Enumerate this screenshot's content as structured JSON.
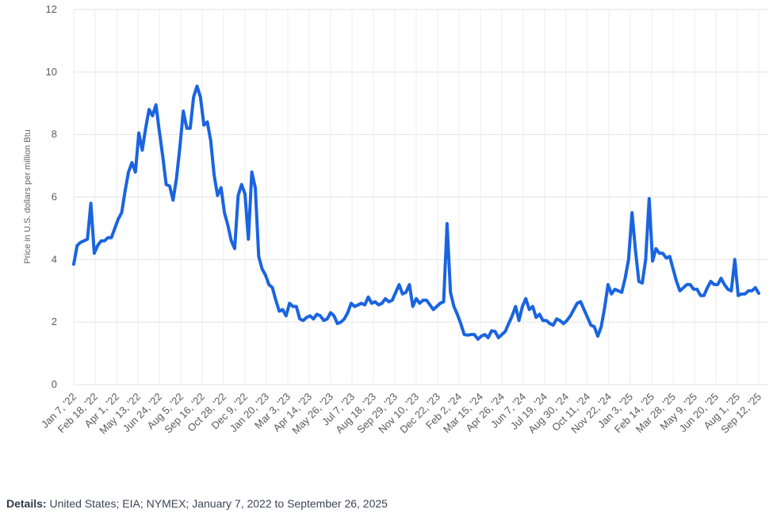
{
  "chart_data": {
    "type": "line",
    "title": "",
    "xlabel": "",
    "ylabel": "Price in U.S. dollars per million Btu",
    "ylim": [
      0,
      12
    ],
    "yticks": [
      0,
      2,
      4,
      6,
      8,
      10,
      12
    ],
    "grid": "vertical and horizontal",
    "legend": "none",
    "line_color": "#1a64e0",
    "x_tick_labels": [
      "Jan 7, '22",
      "Feb 18, '22",
      "Apr 1, '22",
      "May 13, '22",
      "Jun 24, '22",
      "Aug 5, '22",
      "Sep 16, '22",
      "Oct 28, '22",
      "Dec 9, '22",
      "Jan 20, '23",
      "Mar 3, '23",
      "Apr 14, '23",
      "May 26, '23",
      "Jul 7, '23",
      "Aug 18, '23",
      "Sep 29, '23",
      "Nov 10, '23",
      "Dec 22, '23",
      "Feb 2, '24",
      "Mar 15, '24",
      "Apr 26, '24",
      "Jun 7, '24",
      "Jul 19, '24",
      "Aug 30, '24",
      "Oct 11, '24",
      "Nov 22, '24",
      "Jan 3, '25",
      "Feb 14, '25",
      "Mar 28, '25",
      "May 9, '25",
      "Jun 20, '25",
      "Aug 1, '25",
      "Sep 12, '25"
    ],
    "x_start": "2022-01-07",
    "x_end": "2025-09-26",
    "values": [
      3.85,
      4.45,
      4.55,
      4.6,
      4.65,
      5.8,
      4.2,
      4.45,
      4.6,
      4.6,
      4.7,
      4.7,
      5.0,
      5.3,
      5.5,
      6.2,
      6.8,
      7.1,
      6.8,
      8.05,
      7.5,
      8.2,
      8.8,
      8.6,
      8.95,
      8.1,
      7.3,
      6.4,
      6.35,
      5.9,
      6.6,
      7.6,
      8.75,
      8.2,
      8.2,
      9.2,
      9.55,
      9.2,
      8.3,
      8.4,
      7.8,
      6.7,
      6.05,
      6.3,
      5.5,
      5.1,
      4.6,
      4.35,
      6.05,
      6.4,
      6.1,
      4.65,
      6.8,
      6.3,
      4.1,
      3.7,
      3.5,
      3.2,
      3.1,
      2.7,
      2.35,
      2.4,
      2.2,
      2.6,
      2.5,
      2.5,
      2.1,
      2.05,
      2.15,
      2.2,
      2.1,
      2.25,
      2.2,
      2.05,
      2.1,
      2.3,
      2.2,
      1.95,
      2.0,
      2.1,
      2.3,
      2.6,
      2.5,
      2.55,
      2.6,
      2.55,
      2.8,
      2.6,
      2.65,
      2.55,
      2.6,
      2.75,
      2.65,
      2.7,
      2.95,
      3.2,
      2.9,
      2.95,
      3.2,
      2.5,
      2.75,
      2.6,
      2.7,
      2.7,
      2.55,
      2.4,
      2.5,
      2.6,
      2.65,
      5.15,
      2.95,
      2.5,
      2.25,
      1.95,
      1.6,
      1.58,
      1.6,
      1.6,
      1.45,
      1.55,
      1.6,
      1.5,
      1.72,
      1.7,
      1.5,
      1.6,
      1.7,
      1.95,
      2.2,
      2.5,
      2.05,
      2.5,
      2.75,
      2.4,
      2.5,
      2.15,
      2.25,
      2.05,
      2.05,
      1.95,
      1.9,
      2.1,
      2.05,
      1.95,
      2.05,
      2.2,
      2.4,
      2.6,
      2.65,
      2.4,
      2.15,
      1.9,
      1.85,
      1.55,
      1.85,
      2.45,
      3.2,
      2.9,
      3.05,
      3.0,
      2.95,
      3.4,
      4.0,
      5.5,
      4.3,
      3.3,
      3.25,
      4.0,
      5.95,
      3.95,
      4.35,
      4.2,
      4.2,
      4.05,
      4.1,
      3.7,
      3.3,
      3.0,
      3.1,
      3.2,
      3.2,
      3.05,
      3.05,
      2.85,
      2.85,
      3.1,
      3.3,
      3.2,
      3.2,
      3.4,
      3.2,
      3.05,
      3.0,
      4.0,
      2.85,
      2.9,
      2.9,
      3.0,
      3.0,
      3.1,
      2.92
    ]
  },
  "details": {
    "label": "Details:",
    "text": "United States; EIA; NYMEX; January 7, 2022 to September 26, 2025"
  }
}
